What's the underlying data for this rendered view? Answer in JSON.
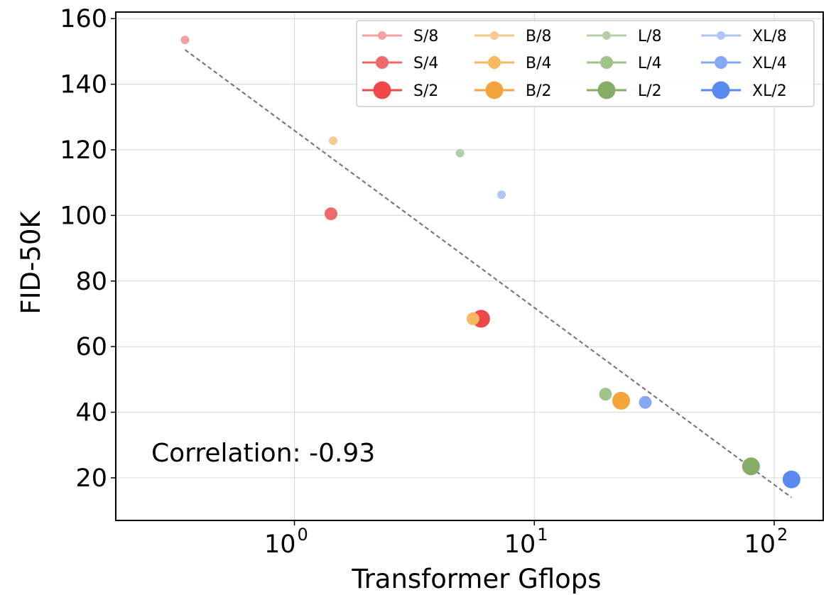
{
  "chart_data": {
    "type": "scatter",
    "title": "",
    "xlabel": "Transformer Gflops",
    "ylabel": "FID-50K",
    "xscale": "log",
    "xlim": [
      0.18,
      160
    ],
    "ylim": [
      7,
      162
    ],
    "y_ticks": [
      "20",
      "40",
      "60",
      "80",
      "100",
      "120",
      "140",
      "160"
    ],
    "x_ticks": [
      {
        "value": 1,
        "base": "10",
        "exp": "0"
      },
      {
        "value": 10,
        "base": "10",
        "exp": "1"
      },
      {
        "value": 100,
        "base": "10",
        "exp": "2"
      }
    ],
    "grid": true,
    "legend_position": "top-right",
    "annotation": "Correlation: -0.93",
    "trend_line": {
      "x": [
        0.35,
        118
      ],
      "y": [
        150.5,
        14
      ]
    },
    "series": [
      {
        "name": "S/8",
        "color": "#f3a0a0",
        "size": "small",
        "x": 0.35,
        "y": 153.5
      },
      {
        "name": "S/4",
        "color": "#ee6a6a",
        "size": "medium",
        "x": 1.42,
        "y": 100.5
      },
      {
        "name": "S/2",
        "color": "#f04848",
        "size": "large",
        "x": 6.0,
        "y": 68.5
      },
      {
        "name": "B/8",
        "color": "#f6ca8c",
        "size": "small",
        "x": 1.45,
        "y": 122.8
      },
      {
        "name": "B/4",
        "color": "#f6b862",
        "size": "medium",
        "x": 5.55,
        "y": 68.5
      },
      {
        "name": "B/2",
        "color": "#f4a43c",
        "size": "large",
        "x": 23.0,
        "y": 43.5
      },
      {
        "name": "L/8",
        "color": "#b4cfa8",
        "size": "small",
        "x": 4.9,
        "y": 119.0
      },
      {
        "name": "L/4",
        "color": "#a0c38c",
        "size": "medium",
        "x": 19.8,
        "y": 45.5
      },
      {
        "name": "L/2",
        "color": "#86ad66",
        "size": "large",
        "x": 80.0,
        "y": 23.5
      },
      {
        "name": "XL/8",
        "color": "#aec5f6",
        "size": "small",
        "x": 7.3,
        "y": 106.3
      },
      {
        "name": "XL/4",
        "color": "#86a8f2",
        "size": "medium",
        "x": 29.0,
        "y": 43.0
      },
      {
        "name": "XL/2",
        "color": "#5a8af0",
        "size": "large",
        "x": 118.0,
        "y": 19.5
      }
    ]
  }
}
